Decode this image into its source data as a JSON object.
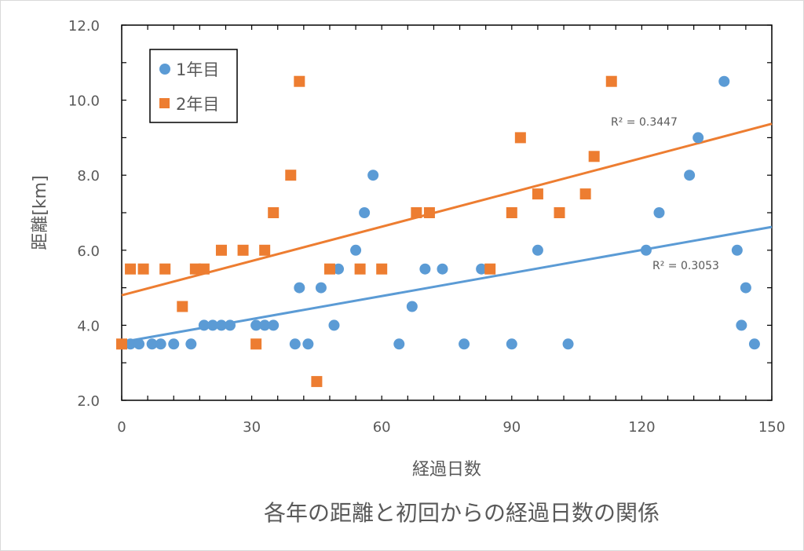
{
  "chart_data": {
    "type": "scatter",
    "title": "各年の距離と初回からの経過日数の関係",
    "xlabel": "経過日数",
    "ylabel": "距離[km]",
    "xlim": [
      0,
      150
    ],
    "ylim": [
      2.0,
      12.0
    ],
    "x_ticks": [
      "0",
      "30",
      "60",
      "90",
      "120",
      "150"
    ],
    "x_tick_values": [
      0,
      30,
      60,
      90,
      120,
      150
    ],
    "y_ticks": [
      "2.0",
      "4.0",
      "6.0",
      "8.0",
      "10.0",
      "12.0"
    ],
    "y_tick_values": [
      2,
      4,
      6,
      8,
      10,
      12
    ],
    "minor_x_step": 6,
    "minor_y_step": 1,
    "grid": false,
    "legend_position": "top-left",
    "series": [
      {
        "name": "1年目",
        "marker": "circle",
        "color": "#5b9bd5",
        "points": [
          [
            2,
            3.5
          ],
          [
            4,
            3.5
          ],
          [
            7,
            3.5
          ],
          [
            9,
            3.5
          ],
          [
            12,
            3.5
          ],
          [
            16,
            3.5
          ],
          [
            19,
            4
          ],
          [
            21,
            4
          ],
          [
            23,
            4
          ],
          [
            25,
            4
          ],
          [
            31,
            4
          ],
          [
            33,
            4
          ],
          [
            35,
            4
          ],
          [
            40,
            3.5
          ],
          [
            41,
            5
          ],
          [
            43,
            3.5
          ],
          [
            46,
            5
          ],
          [
            49,
            4
          ],
          [
            50,
            5.5
          ],
          [
            54,
            6
          ],
          [
            56,
            7
          ],
          [
            58,
            8
          ],
          [
            64,
            3.5
          ],
          [
            67,
            4.5
          ],
          [
            70,
            5.5
          ],
          [
            74,
            5.5
          ],
          [
            79,
            3.5
          ],
          [
            83,
            5.5
          ],
          [
            90,
            3.5
          ],
          [
            96,
            6
          ],
          [
            103,
            3.5
          ],
          [
            121,
            6
          ],
          [
            124,
            7
          ],
          [
            131,
            8
          ],
          [
            133,
            9
          ],
          [
            139,
            10.5
          ],
          [
            142,
            6
          ],
          [
            143,
            4
          ],
          [
            144,
            5
          ],
          [
            146,
            3.5
          ]
        ],
        "trendline": {
          "type": "linear",
          "start": [
            0,
            3.55
          ],
          "end": [
            150,
            6.62
          ],
          "r2_label": "R² = 0.3053"
        }
      },
      {
        "name": "2年目",
        "marker": "square",
        "color": "#ed7d31",
        "points": [
          [
            0,
            3.5
          ],
          [
            2,
            5.5
          ],
          [
            5,
            5.5
          ],
          [
            10,
            5.5
          ],
          [
            14,
            4.5
          ],
          [
            17,
            5.5
          ],
          [
            19,
            5.5
          ],
          [
            23,
            6
          ],
          [
            28,
            6
          ],
          [
            31,
            3.5
          ],
          [
            33,
            6
          ],
          [
            35,
            7
          ],
          [
            39,
            8
          ],
          [
            41,
            10.5
          ],
          [
            45,
            2.5
          ],
          [
            48,
            5.5
          ],
          [
            55,
            5.5
          ],
          [
            60,
            5.5
          ],
          [
            68,
            7
          ],
          [
            71,
            7
          ],
          [
            85,
            5.5
          ],
          [
            90,
            7
          ],
          [
            92,
            9
          ],
          [
            96,
            7.5
          ],
          [
            101,
            7
          ],
          [
            107,
            7.5
          ],
          [
            109,
            8.5
          ],
          [
            113,
            10.5
          ]
        ],
        "trendline": {
          "type": "linear",
          "start": [
            0,
            4.8
          ],
          "end": [
            150,
            9.37
          ],
          "r2_label": "R² = 0.3447"
        }
      }
    ]
  }
}
